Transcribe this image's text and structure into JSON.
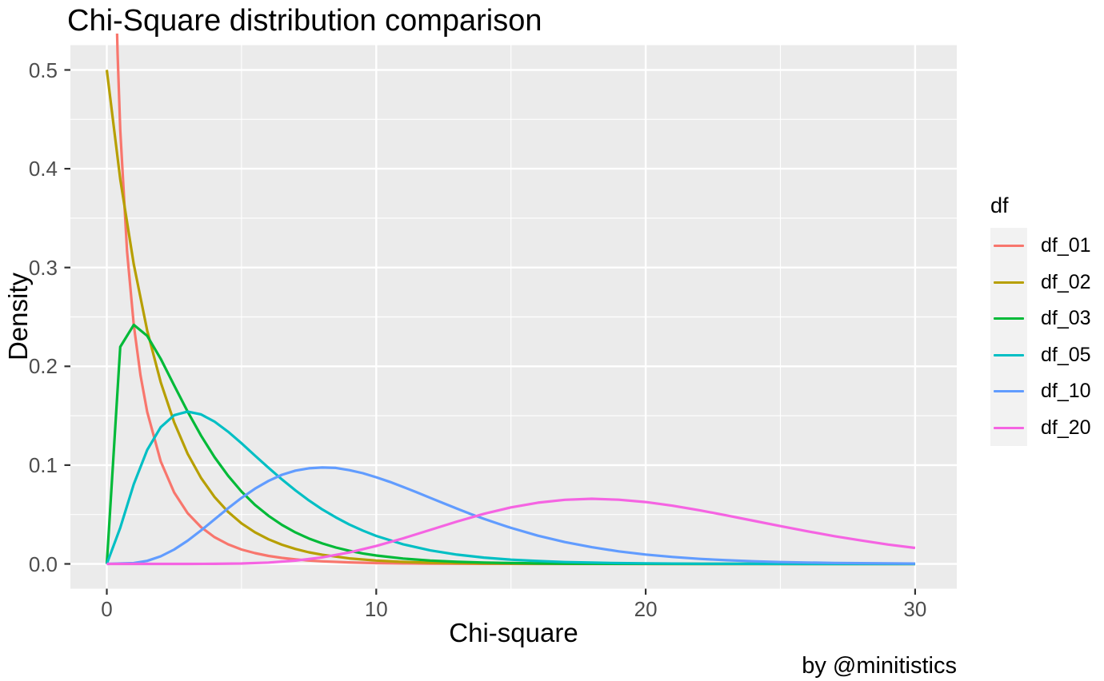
{
  "title": "Chi-Square distribution comparison",
  "caption": "by @minitistics",
  "chart_data": {
    "type": "line",
    "title": "Chi-Square distribution comparison",
    "xlabel": "Chi-square",
    "ylabel": "Density",
    "legend_title": "df",
    "legend_position": "right",
    "grid": true,
    "panel_bg": "#EBEBEB",
    "grid_color": "#FFFFFF",
    "legend_key_bg": "#F2F2F2",
    "tick_label_color": "#4d4d4d",
    "xlim": [
      0,
      30
    ],
    "ylim": [
      0,
      0.5
    ],
    "x_expanded": [
      -1.5,
      31.5
    ],
    "y_expanded": [
      -0.025,
      0.525
    ],
    "x_major_ticks": [
      0,
      10,
      20,
      30
    ],
    "x_tick_labels": [
      "0",
      "10",
      "20",
      "30"
    ],
    "x_minor_ticks": [
      5,
      15,
      25
    ],
    "y_major_ticks": [
      0,
      0.1,
      0.2,
      0.3,
      0.4,
      0.5
    ],
    "y_tick_labels": [
      "0.0",
      "0.1",
      "0.2",
      "0.3",
      "0.4",
      "0.5"
    ],
    "y_minor_ticks": [
      0.05,
      0.15,
      0.25,
      0.35,
      0.45
    ],
    "series": [
      {
        "name": "df_01",
        "color": "#F8766D",
        "points": [
          [
            0.05,
            1.74
          ],
          [
            0.1,
            1.2
          ],
          [
            0.2,
            0.8071
          ],
          [
            0.3,
            0.6269
          ],
          [
            0.4,
            0.5164
          ],
          [
            0.5,
            0.4394
          ],
          [
            0.75,
            0.3166
          ],
          [
            1,
            0.242
          ],
          [
            1.25,
            0.191
          ],
          [
            1.5,
            0.1539
          ],
          [
            2,
            0.1038
          ],
          [
            2.5,
            0.0723
          ],
          [
            3,
            0.0514
          ],
          [
            3.5,
            0.0371
          ],
          [
            4,
            0.027
          ],
          [
            4.5,
            0.0198
          ],
          [
            5,
            0.0146
          ],
          [
            5.5,
            0.0109
          ],
          [
            6,
            0.0081
          ],
          [
            6.5,
            0.0061
          ],
          [
            7,
            0.0046
          ],
          [
            7.5,
            0.0034
          ],
          [
            8,
            0.0026
          ],
          [
            9,
            0.0015
          ],
          [
            10,
            0.0008
          ],
          [
            11,
            0.0005
          ],
          [
            12,
            0.0003
          ],
          [
            13,
            0.0002
          ],
          [
            14,
            0.0001
          ],
          [
            15,
            0.0001
          ],
          [
            16,
            0
          ],
          [
            18,
            0
          ],
          [
            20,
            0
          ],
          [
            25,
            0
          ],
          [
            30,
            0
          ]
        ]
      },
      {
        "name": "df_02",
        "color": "#B79F00",
        "points": [
          [
            0,
            0.5
          ],
          [
            0.5,
            0.3894
          ],
          [
            1,
            0.3033
          ],
          [
            1.5,
            0.2362
          ],
          [
            2,
            0.1839
          ],
          [
            2.5,
            0.1433
          ],
          [
            3,
            0.1116
          ],
          [
            3.5,
            0.0869
          ],
          [
            4,
            0.0677
          ],
          [
            4.5,
            0.0527
          ],
          [
            5,
            0.041
          ],
          [
            5.5,
            0.032
          ],
          [
            6,
            0.0249
          ],
          [
            6.5,
            0.0194
          ],
          [
            7,
            0.0151
          ],
          [
            7.5,
            0.0117
          ],
          [
            8,
            0.0092
          ],
          [
            9,
            0.0056
          ],
          [
            10,
            0.0034
          ],
          [
            11,
            0.002
          ],
          [
            12,
            0.0012
          ],
          [
            13,
            0.0008
          ],
          [
            14,
            0.0005
          ],
          [
            15,
            0.0003
          ],
          [
            16,
            0.0002
          ],
          [
            18,
            0.0001
          ],
          [
            20,
            0
          ],
          [
            22,
            0
          ],
          [
            24,
            0
          ],
          [
            26,
            0
          ],
          [
            28,
            0
          ],
          [
            30,
            0
          ]
        ]
      },
      {
        "name": "df_03",
        "color": "#00BA38",
        "points": [
          [
            0,
            0
          ],
          [
            0.5,
            0.2197
          ],
          [
            1,
            0.242
          ],
          [
            1.5,
            0.2308
          ],
          [
            2,
            0.2076
          ],
          [
            2.5,
            0.1807
          ],
          [
            3,
            0.1542
          ],
          [
            3.5,
            0.1297
          ],
          [
            4,
            0.108
          ],
          [
            4.5,
            0.0892
          ],
          [
            5,
            0.0732
          ],
          [
            5.5,
            0.0598
          ],
          [
            6,
            0.0487
          ],
          [
            6.5,
            0.0395
          ],
          [
            7,
            0.0319
          ],
          [
            7.5,
            0.0257
          ],
          [
            8,
            0.0207
          ],
          [
            8.5,
            0.0166
          ],
          [
            9,
            0.0133
          ],
          [
            9.5,
            0.0106
          ],
          [
            10,
            0.0085
          ],
          [
            11,
            0.0054
          ],
          [
            12,
            0.0034
          ],
          [
            13,
            0.0022
          ],
          [
            14,
            0.0014
          ],
          [
            15,
            0.0009
          ],
          [
            16,
            0.0005
          ],
          [
            17,
            0.0003
          ],
          [
            18,
            0.0002
          ],
          [
            19,
            0.0001
          ],
          [
            20,
            0.0001
          ],
          [
            22,
            0
          ],
          [
            24,
            0
          ],
          [
            26,
            0
          ],
          [
            28,
            0
          ],
          [
            30,
            0
          ]
        ]
      },
      {
        "name": "df_05",
        "color": "#00BFC4",
        "points": [
          [
            0,
            0
          ],
          [
            0.5,
            0.0366
          ],
          [
            1,
            0.0807
          ],
          [
            1.5,
            0.1154
          ],
          [
            2,
            0.1384
          ],
          [
            2.5,
            0.1506
          ],
          [
            3,
            0.1542
          ],
          [
            3.5,
            0.1513
          ],
          [
            4,
            0.144
          ],
          [
            4.5,
            0.1338
          ],
          [
            5,
            0.1221
          ],
          [
            5.5,
            0.1096
          ],
          [
            6,
            0.0973
          ],
          [
            6.5,
            0.0855
          ],
          [
            7,
            0.0744
          ],
          [
            7.5,
            0.0642
          ],
          [
            8,
            0.0551
          ],
          [
            8.5,
            0.0471
          ],
          [
            9,
            0.0399
          ],
          [
            9.5,
            0.0337
          ],
          [
            10,
            0.0283
          ],
          [
            11,
            0.0198
          ],
          [
            12,
            0.0137
          ],
          [
            13,
            0.0094
          ],
          [
            14,
            0.0064
          ],
          [
            15,
            0.0043
          ],
          [
            16,
            0.0029
          ],
          [
            17,
            0.0019
          ],
          [
            18,
            0.0013
          ],
          [
            19,
            0.0008
          ],
          [
            20,
            0.0005
          ],
          [
            22,
            0.0002
          ],
          [
            24,
            0.0001
          ],
          [
            26,
            0
          ],
          [
            28,
            0
          ],
          [
            30,
            0
          ]
        ]
      },
      {
        "name": "df_10",
        "color": "#619CFF",
        "points": [
          [
            0,
            0
          ],
          [
            1,
            0.0008
          ],
          [
            1.5,
            0.0031
          ],
          [
            2,
            0.0077
          ],
          [
            2.5,
            0.0146
          ],
          [
            3,
            0.0235
          ],
          [
            3.5,
            0.034
          ],
          [
            4,
            0.0451
          ],
          [
            4.5,
            0.0563
          ],
          [
            5,
            0.0668
          ],
          [
            5.5,
            0.0761
          ],
          [
            6,
            0.084
          ],
          [
            6.5,
            0.0902
          ],
          [
            7,
            0.0944
          ],
          [
            7.5,
            0.0968
          ],
          [
            8,
            0.0976
          ],
          [
            8.5,
            0.0972
          ],
          [
            9,
            0.0949
          ],
          [
            9.5,
            0.0918
          ],
          [
            10,
            0.0877
          ],
          [
            10.5,
            0.0831
          ],
          [
            11,
            0.0779
          ],
          [
            11.5,
            0.0725
          ],
          [
            12,
            0.0669
          ],
          [
            12.5,
            0.0614
          ],
          [
            13,
            0.0559
          ],
          [
            13.5,
            0.0506
          ],
          [
            14,
            0.0456
          ],
          [
            14.5,
            0.0409
          ],
          [
            15,
            0.0365
          ],
          [
            16,
            0.0286
          ],
          [
            17,
            0.0221
          ],
          [
            18,
            0.0169
          ],
          [
            19,
            0.0127
          ],
          [
            20,
            0.0095
          ],
          [
            21,
            0.007
          ],
          [
            22,
            0.0051
          ],
          [
            23,
            0.0037
          ],
          [
            24,
            0.0027
          ],
          [
            25,
            0.0019
          ],
          [
            26,
            0.0014
          ],
          [
            27,
            0.001
          ],
          [
            28,
            0.0007
          ],
          [
            29,
            0.0005
          ],
          [
            30,
            0.0003
          ]
        ]
      },
      {
        "name": "df_20",
        "color": "#F564E2",
        "points": [
          [
            0,
            0
          ],
          [
            2,
            0
          ],
          [
            3,
            0
          ],
          [
            4,
            0.0001
          ],
          [
            5,
            0.0004
          ],
          [
            6,
            0.0014
          ],
          [
            7,
            0.0033
          ],
          [
            8,
            0.0066
          ],
          [
            9,
            0.0116
          ],
          [
            10,
            0.0181
          ],
          [
            11,
            0.0259
          ],
          [
            12,
            0.0344
          ],
          [
            13,
            0.0429
          ],
          [
            14,
            0.0507
          ],
          [
            15,
            0.0572
          ],
          [
            16,
            0.062
          ],
          [
            17,
            0.0649
          ],
          [
            18,
            0.0659
          ],
          [
            19,
            0.065
          ],
          [
            20,
            0.0626
          ],
          [
            21,
            0.0589
          ],
          [
            22,
            0.0543
          ],
          [
            23,
            0.0491
          ],
          [
            24,
            0.0437
          ],
          [
            25,
            0.0383
          ],
          [
            26,
            0.033
          ],
          [
            27,
            0.0281
          ],
          [
            28,
            0.0237
          ],
          [
            29,
            0.0196
          ],
          [
            30,
            0.0162
          ]
        ]
      }
    ]
  }
}
